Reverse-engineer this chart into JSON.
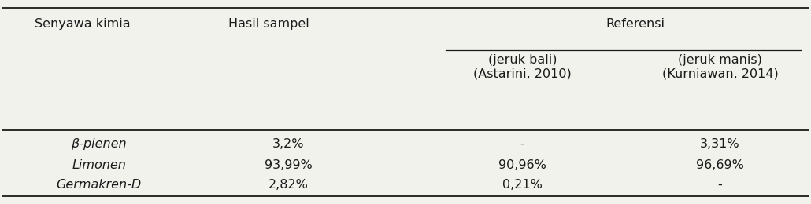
{
  "rows": [
    [
      "β-pienen",
      "3,2%",
      "-",
      "3,31%"
    ],
    [
      "Limonen",
      "93,99%",
      "90,96%",
      "96,69%"
    ],
    [
      "Germakren-D",
      "2,82%",
      "0,21%",
      "-"
    ]
  ],
  "bg_color": "#f2f2ed",
  "text_color": "#1a1a1a",
  "font_size": 11.5
}
